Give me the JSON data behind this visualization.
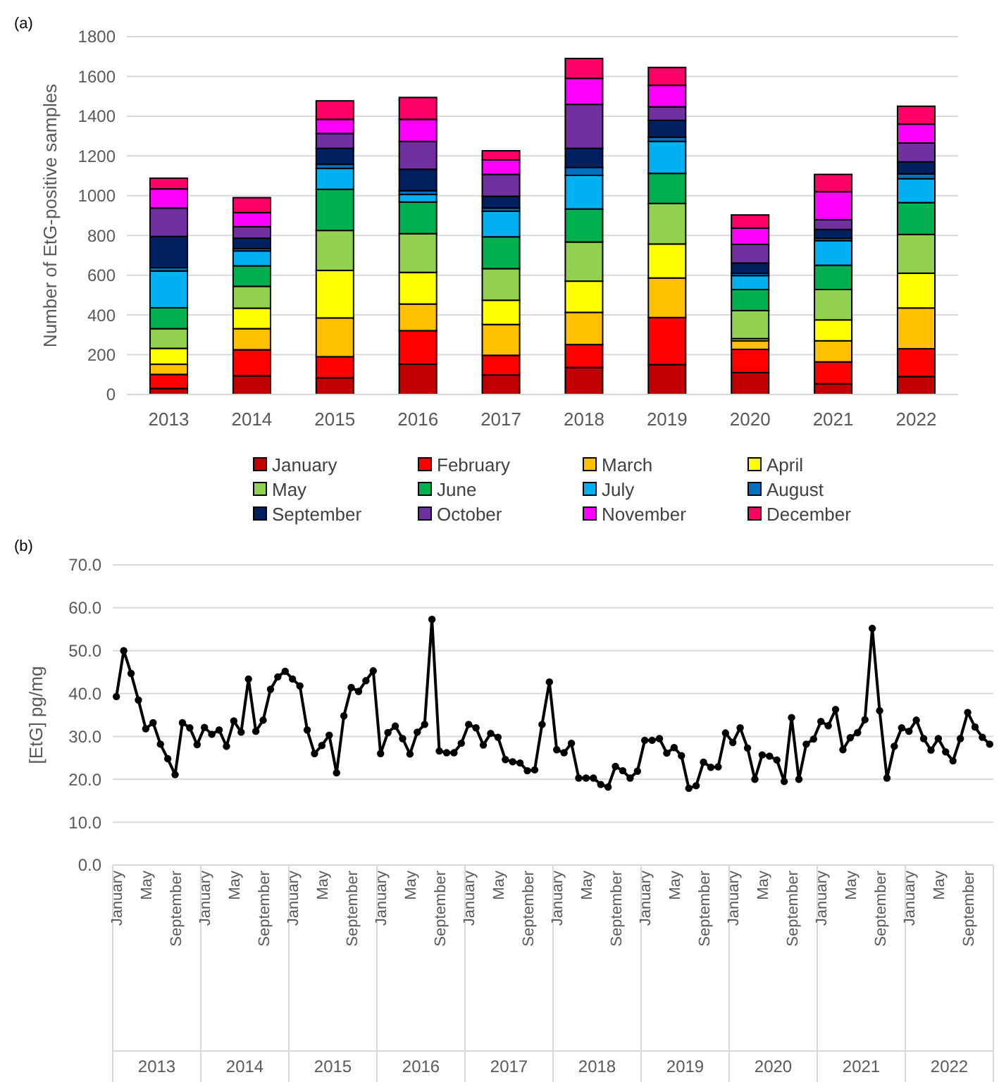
{
  "chart_data": [
    {
      "type": "bar",
      "title": "(a)",
      "ylabel": "Number of EtG-positive samples",
      "stacked": true,
      "grid": "y",
      "legend": "bottom",
      "categories": [
        "2013",
        "2014",
        "2015",
        "2016",
        "2017",
        "2018",
        "2019",
        "2020",
        "2021",
        "2022"
      ],
      "ylim": [
        0,
        1800
      ],
      "yticks": [
        0,
        200,
        400,
        600,
        800,
        1000,
        1200,
        1400,
        1600,
        1800
      ],
      "series": [
        {
          "name": "January",
          "color": "#c00000",
          "values": [
            30,
            94,
            84,
            152,
            98,
            136,
            150,
            110,
            54,
            90
          ]
        },
        {
          "name": "February",
          "color": "#ff0000",
          "values": [
            71,
            131,
            106,
            169,
            99,
            115,
            237,
            117,
            110,
            140
          ]
        },
        {
          "name": "March",
          "color": "#ffc000",
          "values": [
            51,
            106,
            195,
            134,
            155,
            162,
            199,
            43,
            106,
            205
          ]
        },
        {
          "name": "April",
          "color": "#ffff00",
          "values": [
            80,
            103,
            239,
            159,
            122,
            157,
            171,
            11,
            105,
            175
          ]
        },
        {
          "name": "May",
          "color": "#92d050",
          "values": [
            99,
            110,
            201,
            195,
            159,
            197,
            204,
            141,
            153,
            195
          ]
        },
        {
          "name": "June",
          "color": "#00b050",
          "values": [
            105,
            103,
            207,
            159,
            160,
            166,
            151,
            106,
            122,
            160
          ]
        },
        {
          "name": "July",
          "color": "#00b0f0",
          "values": [
            185,
            75,
            105,
            38,
            129,
            169,
            161,
            70,
            124,
            120
          ]
        },
        {
          "name": "August",
          "color": "#0070c0",
          "values": [
            17,
            12,
            21,
            19,
            16,
            40,
            21,
            12,
            12,
            25
          ]
        },
        {
          "name": "September",
          "color": "#002060",
          "values": [
            157,
            52,
            80,
            108,
            59,
            96,
            85,
            51,
            44,
            60
          ]
        },
        {
          "name": "October",
          "color": "#7030a0",
          "values": [
            143,
            58,
            75,
            140,
            110,
            221,
            68,
            94,
            49,
            95
          ]
        },
        {
          "name": "November",
          "color": "#ff00ff",
          "values": [
            96,
            71,
            71,
            111,
            73,
            131,
            108,
            82,
            141,
            95
          ]
        },
        {
          "name": "December",
          "color": "#ff0066",
          "values": [
            54,
            75,
            93,
            110,
            46,
            100,
            90,
            66,
            87,
            90
          ]
        }
      ]
    },
    {
      "type": "line",
      "title": "(b)",
      "ylabel": "[EtG] pg/mg",
      "grid": "y",
      "marker": "circle",
      "line_style": "solid",
      "ylim": [
        0,
        70
      ],
      "yticks": [
        {
          "value": 0,
          "label": "0.0"
        },
        {
          "value": 10,
          "label": "10.0"
        },
        {
          "value": 20,
          "label": "20.0"
        },
        {
          "value": 30,
          "label": "30.0"
        },
        {
          "value": 40,
          "label": "40.0"
        },
        {
          "value": 50,
          "label": "50.0"
        },
        {
          "value": 60,
          "label": "60.0"
        },
        {
          "value": 70,
          "label": "70.0"
        }
      ],
      "annotations": [
        "2013",
        "2014",
        "2015",
        "2016",
        "2017",
        "2018",
        "2019",
        "2020",
        "2021",
        "2022"
      ],
      "categories": [
        "January",
        null,
        null,
        null,
        "May",
        null,
        null,
        null,
        "September",
        null,
        null,
        null,
        "January",
        null,
        null,
        null,
        "May",
        null,
        null,
        null,
        "September",
        null,
        null,
        null,
        "January",
        null,
        null,
        null,
        "May",
        null,
        null,
        null,
        "September",
        null,
        null,
        null,
        "January",
        null,
        null,
        null,
        "May",
        null,
        null,
        null,
        "September",
        null,
        null,
        null,
        "January",
        null,
        null,
        null,
        "May",
        null,
        null,
        null,
        "September",
        null,
        null,
        null,
        "January",
        null,
        null,
        null,
        "May",
        null,
        null,
        null,
        "September",
        null,
        null,
        null,
        "January",
        null,
        null,
        null,
        "May",
        null,
        null,
        null,
        "September",
        null,
        null,
        null,
        "January",
        null,
        null,
        null,
        "May",
        null,
        null,
        null,
        "September",
        null,
        null,
        null,
        "January",
        null,
        null,
        null,
        "May",
        null,
        null,
        null,
        "September",
        null,
        null,
        null,
        "January",
        null,
        null,
        null,
        "May",
        null,
        null,
        null,
        "September",
        null,
        null,
        null
      ],
      "series": [
        {
          "color": "#000000",
          "values": [
            39.3,
            50,
            44.7,
            38.5,
            31.8,
            33.2,
            28.2,
            24.8,
            21.1,
            33.2,
            32,
            28.1,
            32.1,
            30.5,
            31.5,
            27.7,
            33.6,
            31,
            43.4,
            31.2,
            33.8,
            41,
            43.9,
            45.2,
            43.4,
            41.8,
            31.5,
            26,
            27.9,
            30.3,
            21.5,
            34.8,
            41.4,
            40.5,
            43,
            45.3,
            26,
            30.9,
            32.4,
            29.5,
            25.9,
            31,
            32.8,
            57.3,
            26.6,
            26.2,
            26.2,
            28.4,
            32.8,
            32,
            28,
            30.7,
            29.8,
            24.6,
            24.1,
            23.8,
            22,
            22.2,
            32.8,
            42.7,
            26.9,
            26.2,
            28.4,
            20.3,
            20.3,
            20.3,
            18.8,
            18.2,
            23,
            22,
            20.3,
            21.9,
            29.1,
            29.1,
            29.5,
            26.1,
            27.4,
            25.5,
            17.9,
            18.5,
            24,
            22.8,
            22.9,
            30.8,
            28.6,
            32,
            27.3,
            20,
            25.7,
            25.4,
            24.5,
            19.5,
            34.4,
            20,
            28.2,
            29.4,
            33.5,
            32.5,
            36.3,
            26.9,
            29.7,
            30.9,
            33.9,
            55.2,
            36,
            20.3,
            27.7,
            32,
            31.2,
            33.8,
            29.5,
            26.8,
            29.5,
            26.4,
            24.3,
            29.5,
            35.6,
            32.2,
            29.8,
            28.2
          ]
        }
      ]
    }
  ]
}
